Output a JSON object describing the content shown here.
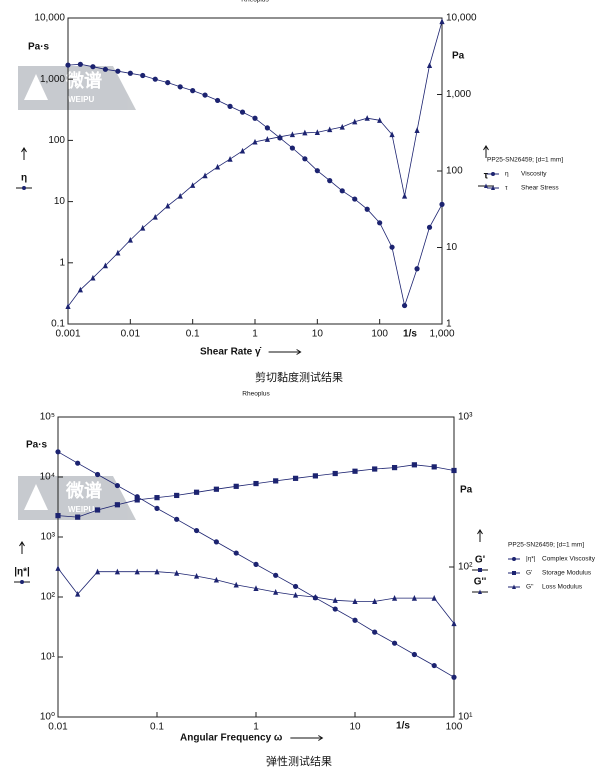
{
  "watermark": {
    "text": "微谱",
    "subtext": "WEIPU"
  },
  "chart_data": [
    {
      "type": "line",
      "title": "Rheoplus",
      "caption": "剪切黏度测试结果",
      "xlabel": "Shear Rate γ̇",
      "xunit": "1/s",
      "ylabel": "Pa·s",
      "ylabel_symbol": "η",
      "y2label": "Pa",
      "y2label_symbols": [
        "τ"
      ],
      "legend_title": "PP25-SN26459; [d=1 mm]",
      "xscale": "log",
      "yscale": "log",
      "y2scale": "log",
      "xlim": [
        0.001,
        1000
      ],
      "ylim": [
        0.1,
        10000
      ],
      "y2lim": [
        1,
        10000
      ],
      "xticks": [
        0.001,
        0.01,
        0.1,
        1,
        10,
        100,
        {
          "value": 1000,
          "label": "1,000"
        }
      ],
      "yticks": [
        0.1,
        1,
        10,
        100,
        {
          "value": 1000,
          "label": "1,000"
        },
        {
          "value": 10000,
          "label": "10,000"
        }
      ],
      "y2ticks": [
        1,
        10,
        100,
        {
          "value": 1000,
          "label": "1,000"
        },
        {
          "value": 10000,
          "label": "10,000"
        }
      ],
      "x": [
        0.001,
        0.00158,
        0.00251,
        0.00398,
        0.00631,
        0.01,
        0.0158,
        0.0251,
        0.0398,
        0.0631,
        0.1,
        0.158,
        0.251,
        0.398,
        0.631,
        1,
        1.58,
        2.51,
        3.98,
        6.31,
        10,
        15.8,
        25.1,
        39.8,
        63.1,
        100,
        158,
        251,
        398,
        631,
        1000
      ],
      "series": [
        {
          "name": "Viscosity",
          "symbol": "η",
          "marker": "circle",
          "color": "#1c2370",
          "axis": "y",
          "values": [
            1700,
            1750,
            1600,
            1450,
            1350,
            1250,
            1150,
            1000,
            880,
            750,
            650,
            550,
            450,
            360,
            290,
            230,
            160,
            110,
            75,
            50,
            32,
            22,
            15,
            11,
            7.5,
            4.5,
            1.8,
            0.2,
            0.8,
            3.8,
            9
          ]
        },
        {
          "name": "Shear Stress",
          "symbol": "τ",
          "marker": "triangle",
          "color": "#1c2370",
          "axis": "y2",
          "values": [
            1.7,
            2.8,
            4,
            5.8,
            8.5,
            12.5,
            18,
            25,
            35,
            47,
            65,
            87,
            113,
            143,
            183,
            240,
            260,
            280,
            300,
            316,
            320,
            348,
            376,
            440,
            490,
            460,
            300,
            47,
            340,
            2400,
            9000
          ]
        }
      ]
    },
    {
      "type": "line",
      "title": "Rheoplus",
      "caption": "弹性测试结果",
      "xlabel": "Angular Frequency ω",
      "xunit": "1/s",
      "ylabel": "Pa·s",
      "ylabel_symbol": "|η*|",
      "y2label": "Pa",
      "y2label_symbols": [
        "G'",
        "G''"
      ],
      "legend_title": "PP25-SN26459; [d=1 mm]",
      "xscale": "log",
      "yscale": "log",
      "y2scale": "log",
      "xlim": [
        0.01,
        100
      ],
      "ylim": [
        1,
        100000
      ],
      "y2lim": [
        10,
        1000
      ],
      "xticks": [
        0.01,
        0.1,
        1,
        10,
        100
      ],
      "yticks": [
        {
          "value": 1,
          "label": "10⁰"
        },
        {
          "value": 10,
          "label": "10¹"
        },
        {
          "value": 100,
          "label": "10²"
        },
        {
          "value": 1000,
          "label": "10³"
        },
        {
          "value": 10000,
          "label": "10⁴"
        },
        {
          "value": 100000,
          "label": "10⁵"
        }
      ],
      "y2ticks": [
        {
          "value": 10,
          "label": "10¹"
        },
        {
          "value": 100,
          "label": "10²"
        },
        {
          "value": 1000,
          "label": "10³"
        }
      ],
      "x": [
        0.01,
        0.0158,
        0.0251,
        0.0398,
        0.0631,
        0.1,
        0.158,
        0.251,
        0.398,
        0.631,
        1,
        1.58,
        2.51,
        3.98,
        6.31,
        10,
        15.8,
        25.1,
        39.8,
        63.1,
        100
      ],
      "series": [
        {
          "name": "Complex Viscosity",
          "symbol": "|η*|",
          "marker": "circle",
          "color": "#1c2370",
          "axis": "y",
          "values": [
            26300,
            17000,
            11000,
            7200,
            4700,
            3000,
            1970,
            1280,
            830,
            540,
            350,
            230,
            150,
            97,
            63,
            41,
            26,
            17,
            11,
            7.2,
            4.6
          ]
        },
        {
          "name": "Storage Modulus",
          "symbol": "G'",
          "marker": "square",
          "color": "#1c2370",
          "axis": "y2",
          "values": [
            220,
            215,
            240,
            260,
            280,
            290,
            300,
            315,
            330,
            345,
            360,
            375,
            390,
            405,
            420,
            435,
            450,
            460,
            480,
            465,
            440
          ]
        },
        {
          "name": "Loss Modulus",
          "symbol": "G''",
          "marker": "triangle",
          "color": "#1c2370",
          "axis": "y2",
          "values": [
            98,
            66,
            93,
            93,
            93,
            93,
            91,
            87,
            82,
            76,
            72,
            68,
            65,
            63,
            60,
            59,
            59,
            62,
            62,
            62,
            42
          ]
        }
      ]
    }
  ]
}
